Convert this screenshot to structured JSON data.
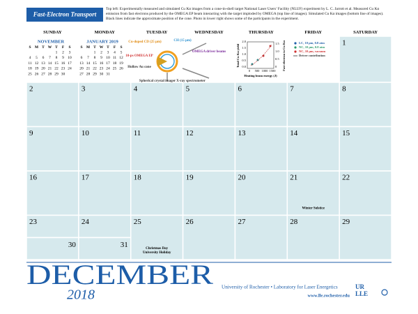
{
  "header": {
    "title": "Fast-Electron Transport",
    "caption": "Top left: Experimentally measured and simulated Cu Kα images from a cone-in-shell target National Laser Users’ Facility (NLUF) experiment by L. C. Jarrott et al. Measured Cu Kα emission from fast electrons produced by the OMEGA EP beam interacting with the target imploded by OMEGA (top line of images). Simulated Cu Kα images (bottom line of images). Black lines indicate the approximate position of the cone. Photo in lower right shows some of the participants in the experiment."
  },
  "weekdays": [
    "SUNDAY",
    "MONDAY",
    "TUESDAY",
    "WEDNESDAY",
    "THURSDAY",
    "FRIDAY",
    "SATURDAY"
  ],
  "mini_calendars": [
    {
      "month": "NOVEMBER",
      "weekdays": [
        "S",
        "M",
        "T",
        "W",
        "T",
        "F",
        "S"
      ],
      "weeks": [
        [
          null,
          null,
          null,
          null,
          1,
          2,
          3
        ],
        [
          4,
          5,
          6,
          7,
          8,
          9,
          10
        ],
        [
          11,
          12,
          13,
          14,
          15,
          16,
          17
        ],
        [
          18,
          19,
          20,
          21,
          22,
          23,
          24
        ],
        [
          25,
          26,
          27,
          28,
          29,
          30,
          null
        ]
      ]
    },
    {
      "month": "JANUARY 2019",
      "weekdays": [
        "S",
        "M",
        "T",
        "W",
        "T",
        "F",
        "S"
      ],
      "weeks": [
        [
          null,
          null,
          1,
          2,
          3,
          4,
          5
        ],
        [
          6,
          7,
          8,
          9,
          10,
          11,
          12
        ],
        [
          13,
          14,
          15,
          16,
          17,
          18,
          19
        ],
        [
          20,
          21,
          22,
          23,
          24,
          25,
          26
        ],
        [
          27,
          28,
          29,
          30,
          31,
          null,
          null
        ]
      ]
    }
  ],
  "diagram": {
    "labels": [
      "Cu-doped CD (25 μm)",
      "CH (15 μm)",
      "10-ps OMEGA EP",
      "OMEGA driver beams",
      "Hollow Au cone",
      "Spherical crystal imager",
      "X-ray spectrometer"
    ]
  },
  "plot": {
    "xlabel": "Heating beam energy (J)",
    "ylabel": "Total Cu Kα yield",
    "y2label": "Fast electron to Cu Kα",
    "xticks": [
      0,
      500,
      1000,
      1500
    ],
    "yticks": [
      "0.0",
      "0.5",
      "1.0",
      "1.5",
      "2.0"
    ],
    "y2ticks": [
      "0",
      "0.5",
      "1.0",
      "1.5"
    ],
    "legend": [
      "LC, 10 μm, 0.8 atm",
      "NC, 10 μm, 0.8 atm",
      "NC, 10 μm, vacuum",
      "Driver contribution"
    ]
  },
  "calendar": {
    "weeks": [
      [
        null,
        null,
        null,
        null,
        null,
        null,
        1
      ],
      [
        2,
        3,
        4,
        5,
        6,
        7,
        8
      ],
      [
        9,
        10,
        11,
        12,
        13,
        14,
        15
      ],
      [
        16,
        17,
        18,
        19,
        20,
        21,
        22
      ],
      [
        23,
        24,
        25,
        26,
        27,
        28,
        29
      ]
    ],
    "extra_days": [
      30,
      31
    ],
    "events": [
      {
        "day": 21,
        "label": [
          "Winter Solstice"
        ]
      },
      {
        "day": 25,
        "label": [
          "Christmas Day",
          "University Holiday"
        ]
      }
    ]
  },
  "footer": {
    "month": "DECEMBER",
    "year": "2018",
    "institution": "University of Rochester • Laboratory for Laser Energetics",
    "url": "www.lle.rochester.edu",
    "logo": [
      "UR",
      "LLE"
    ]
  }
}
